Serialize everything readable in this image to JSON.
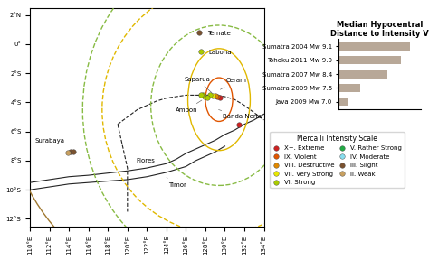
{
  "chart_data": [
    {
      "type": "scatter",
      "xlim": [
        110,
        134
      ],
      "ylim": [
        -12.5,
        2.5
      ],
      "xticks": [
        {
          "value": 110,
          "label": "110°E"
        },
        {
          "value": 112,
          "label": "112°E"
        },
        {
          "value": 114,
          "label": "114°E"
        },
        {
          "value": 116,
          "label": "116°E"
        },
        {
          "value": 118,
          "label": "118°E"
        },
        {
          "value": 120,
          "label": "120°E"
        },
        {
          "value": 122,
          "label": "122°E"
        },
        {
          "value": 124,
          "label": "124°E"
        },
        {
          "value": 126,
          "label": "126°E"
        },
        {
          "value": 128,
          "label": "128°E"
        },
        {
          "value": 130,
          "label": "130°E"
        },
        {
          "value": 132,
          "label": "132°E"
        },
        {
          "value": 134,
          "label": "134°E"
        }
      ],
      "yticks": [
        {
          "value": 2,
          "label": "2°N"
        },
        {
          "value": 0,
          "label": "0°"
        },
        {
          "value": -2,
          "label": "2°S"
        },
        {
          "value": -4,
          "label": "4°S"
        },
        {
          "value": -6,
          "label": "6°S"
        },
        {
          "value": -8,
          "label": "8°S"
        },
        {
          "value": -10,
          "label": "10°S"
        },
        {
          "value": -12,
          "label": "12°S"
        }
      ],
      "legend": "upper left",
      "legend_title": "Mercalli Intensity Scale",
      "series": [
        {
          "type": "line",
          "color": "#222222",
          "line_style": "solid",
          "x": [
            110,
            112,
            114,
            116,
            118,
            120,
            122,
            124,
            125,
            126,
            127,
            128,
            129,
            130,
            131,
            132,
            133,
            134
          ],
          "values": [
            -9.5,
            -9.3,
            -9.1,
            -9.0,
            -8.85,
            -8.7,
            -8.5,
            -8.2,
            -7.9,
            -7.5,
            -7.2,
            -6.9,
            -6.6,
            -6.2,
            -5.9,
            -5.5,
            -5.2,
            -4.8
          ]
        },
        {
          "type": "line",
          "color": "#222222",
          "line_style": "solid",
          "x": [
            110,
            112,
            114,
            116,
            118,
            120,
            122,
            124,
            126,
            127,
            128,
            129,
            130
          ],
          "values": [
            -10.0,
            -9.8,
            -9.6,
            -9.5,
            -9.4,
            -9.3,
            -9.1,
            -8.8,
            -8.4,
            -8.0,
            -7.7,
            -7.4,
            -7.0
          ]
        },
        {
          "type": "line",
          "color": "#222222",
          "line_style": "dashed",
          "x": [
            119,
            120,
            121,
            122,
            123,
            124,
            125,
            126,
            127,
            128,
            129,
            130,
            131,
            132,
            133,
            134
          ],
          "values": [
            -5.5,
            -5.0,
            -4.5,
            -4.2,
            -3.9,
            -3.7,
            -3.6,
            -3.5,
            -3.5,
            -3.5,
            -3.5,
            -3.6,
            -3.8,
            -4.2,
            -4.7,
            -5.2
          ]
        },
        {
          "type": "line",
          "color": "#222222",
          "line_style": "dashed",
          "x": [
            119,
            119.5,
            120,
            120,
            120
          ],
          "values": [
            -5.5,
            -7.0,
            -8.5,
            -10.0,
            -11.5
          ]
        },
        {
          "type": "scatter",
          "name": "X+. Extreme",
          "color": "#cc2222",
          "marker": "o",
          "x": [
            129.45,
            131.45
          ],
          "values": [
            -3.65,
            -5.55
          ]
        },
        {
          "type": "scatter",
          "name": "IX. Violent",
          "color": "#e05500",
          "marker": "o",
          "x": [
            129.25
          ],
          "values": [
            -3.6
          ]
        },
        {
          "type": "scatter",
          "name": "VIII. Destructive",
          "color": "#e08800",
          "marker": "o",
          "x": [
            129.05
          ],
          "values": [
            -3.55
          ]
        },
        {
          "type": "scatter",
          "name": "VII. Very Strong",
          "color": "#e8e800",
          "marker": "o",
          "x": [
            128.75,
            127.95
          ],
          "values": [
            -3.55,
            -3.6
          ]
        },
        {
          "type": "scatter",
          "name": "VI. Strong",
          "color": "#aacc00",
          "marker": "o",
          "x": [
            128.5,
            128.15,
            127.7,
            127.55,
            127.55
          ],
          "values": [
            -3.5,
            -3.65,
            -3.5,
            -3.45,
            -0.5
          ]
        },
        {
          "type": "scatter",
          "name": "V. Rather Strong",
          "color": "#22aa44",
          "marker": "o",
          "x": [],
          "values": []
        },
        {
          "type": "scatter",
          "name": "IV. Moderate",
          "color": "#88ddee",
          "marker": "o",
          "x": [],
          "values": []
        },
        {
          "type": "scatter",
          "name": "III. Slight",
          "color": "#7a5230",
          "marker": "o",
          "x": [
            127.35,
            114.2,
            114.45
          ],
          "values": [
            0.8,
            -7.35,
            -7.4
          ]
        },
        {
          "type": "scatter",
          "name": "II. Weak",
          "color": "#c8a060",
          "marker": "o",
          "x": [
            113.85
          ],
          "values": [
            -7.45
          ]
        }
      ],
      "ellipses": [
        {
          "cx": 129.4,
          "cy": -3.8,
          "rx": 1.4,
          "ry": 1.5,
          "color": "#e05500",
          "line_style": "solid"
        },
        {
          "cx": 129.4,
          "cy": -3.8,
          "rx": 3.2,
          "ry": 3.5,
          "color": "#e0b800",
          "line_style": "solid"
        },
        {
          "cx": 129.4,
          "cy": -4.2,
          "rx": 7.0,
          "ry": 5.5,
          "color": "#88bb44",
          "line_style": "dashed"
        },
        {
          "cx": 129.4,
          "cy": -4.5,
          "rx": 12.0,
          "ry": 8.5,
          "color": "#e0b800",
          "line_style": "dashed"
        },
        {
          "cx": 129.4,
          "cy": -4.5,
          "rx": 14.0,
          "ry": 11.0,
          "color": "#88bb44",
          "line_style": "dashed"
        },
        {
          "cx": 128.5,
          "cy": -3.5,
          "rx": 21.0,
          "ry": 14.0,
          "color": "#a07830",
          "line_style": "solid"
        }
      ],
      "annotations": [
        {
          "text": "Ternate",
          "x": 127.55,
          "y": 0.75
        },
        {
          "text": "Laboha",
          "x": 127.5,
          "y": -0.55
        },
        {
          "text": "Ceram",
          "x": 129.3,
          "y": -3.2
        },
        {
          "text": "Ambon",
          "x": 127.85,
          "y": -3.75
        },
        {
          "text": "Saparua",
          "x": 128.85,
          "y": -3.45
        },
        {
          "text": "Banda Neria",
          "x": 129.1,
          "y": -4.45
        },
        {
          "text": "Surabaya",
          "x": 112.0,
          "y": -7.25
        },
        {
          "text": "Flores",
          "x": 120.5,
          "y": -8.5
        },
        {
          "text": "Timor",
          "x": 123.8,
          "y": -9.05
        }
      ]
    },
    {
      "type": "bar",
      "orientation": "horizontal",
      "title": "Median Hypocentral Distance to Intensity V",
      "categories": [
        "Sumatra 2004 Mw 9.1",
        "Tohoku 2011 Mw 9.0",
        "Sumatra 2007 Mw 8.4",
        "Sumatra 2009 Mw 7.5",
        "Java 2009 Mw 7.0"
      ],
      "values": [
        100,
        88,
        68,
        30,
        13
      ],
      "color": "#b8a898",
      "xlim": [
        0,
        115
      ],
      "tick_labels": "y"
    }
  ]
}
